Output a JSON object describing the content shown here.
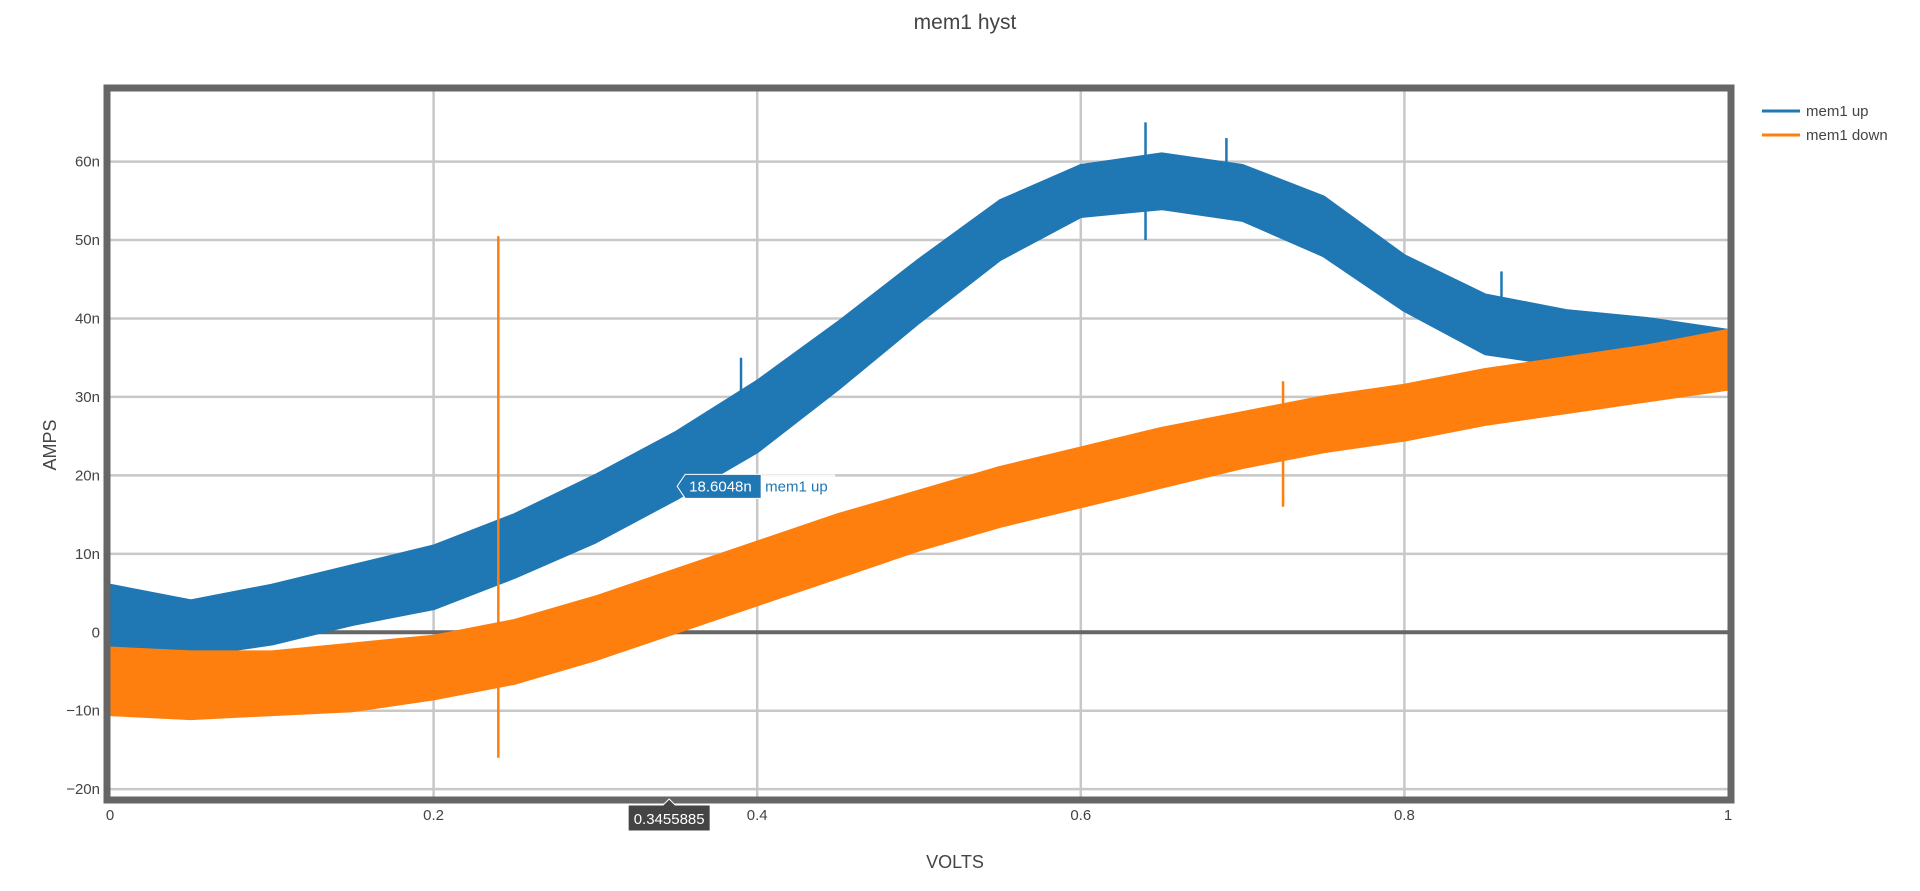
{
  "chart_data": {
    "type": "line",
    "title": "mem1 hyst",
    "xlabel": "VOLTS",
    "ylabel": "AMPS",
    "xlim": [
      0,
      1
    ],
    "ylim": [
      -21,
      69
    ],
    "x_ticks": [
      {
        "value": 0,
        "label": "0"
      },
      {
        "value": 0.2,
        "label": "0.2"
      },
      {
        "value": 0.4,
        "label": "0.4"
      },
      {
        "value": 0.6,
        "label": "0.6"
      },
      {
        "value": 0.8,
        "label": "0.8"
      },
      {
        "value": 1,
        "label": "1"
      }
    ],
    "y_ticks": [
      {
        "value": -20,
        "label": "−20n"
      },
      {
        "value": -10,
        "label": "−10n"
      },
      {
        "value": 0,
        "label": "0"
      },
      {
        "value": 10,
        "label": "10n"
      },
      {
        "value": 20,
        "label": "20n"
      },
      {
        "value": 30,
        "label": "30n"
      },
      {
        "value": 40,
        "label": "40n"
      },
      {
        "value": 50,
        "label": "50n"
      },
      {
        "value": 60,
        "label": "60n"
      }
    ],
    "grid": true,
    "legend_position": "top-right",
    "series": [
      {
        "name": "mem1 up",
        "color": "#1f77b4",
        "x": [
          0,
          0.05,
          0.1,
          0.15,
          0.2,
          0.25,
          0.3,
          0.35,
          0.4,
          0.45,
          0.5,
          0.55,
          0.6,
          0.65,
          0.7,
          0.75,
          0.8,
          0.85,
          0.9,
          0.95,
          1
        ],
        "low": [
          -2,
          -3,
          -1.5,
          1,
          3,
          7,
          11.5,
          17,
          23,
          31,
          39.5,
          47.5,
          53,
          54,
          52.5,
          48,
          41,
          35.5,
          34,
          35,
          37
        ],
        "high": [
          6,
          4,
          6,
          8.5,
          11,
          15,
          20,
          25.5,
          32,
          39.5,
          47.5,
          55,
          59.5,
          61,
          59.5,
          55.5,
          48,
          43,
          41,
          40,
          38.5
        ]
      },
      {
        "name": "mem1 down",
        "color": "#ff7f0e",
        "x": [
          0,
          0.05,
          0.1,
          0.15,
          0.2,
          0.25,
          0.3,
          0.35,
          0.4,
          0.45,
          0.5,
          0.55,
          0.6,
          0.65,
          0.7,
          0.75,
          0.8,
          0.85,
          0.9,
          0.95,
          1
        ],
        "low": [
          -10.5,
          -11,
          -10.5,
          -10,
          -8.5,
          -6.5,
          -3.5,
          0,
          3.5,
          7,
          10.5,
          13.5,
          16,
          18.5,
          21,
          23,
          24.5,
          26.5,
          28,
          29.5,
          31
        ],
        "high": [
          -2,
          -2.5,
          -2.5,
          -1.5,
          -0.5,
          1.5,
          4.5,
          8,
          11.5,
          15,
          18,
          21,
          23.5,
          26,
          28,
          30,
          31.5,
          33.5,
          35,
          36.5,
          38.5
        ]
      }
    ],
    "spikes": [
      {
        "series": "mem1 down",
        "x": 0.24,
        "y_min": -16,
        "y_max": 50.5
      },
      {
        "series": "mem1 down",
        "x": 0.725,
        "y_min": 16,
        "y_max": 32
      },
      {
        "series": "mem1 up",
        "x": 0.39,
        "y_min": 23,
        "y_max": 35
      },
      {
        "series": "mem1 up",
        "x": 0.64,
        "y_min": 50,
        "y_max": 65
      },
      {
        "series": "mem1 up",
        "x": 0.69,
        "y_min": 57,
        "y_max": 63
      },
      {
        "series": "mem1 up",
        "x": 0.86,
        "y_min": 42,
        "y_max": 46
      }
    ],
    "hover": {
      "series": "mem1 up",
      "x": 0.3455885,
      "y": 18.6048,
      "y_label": "18.6048n",
      "x_label": "0.3455885",
      "name_label": "mem1 up"
    }
  }
}
